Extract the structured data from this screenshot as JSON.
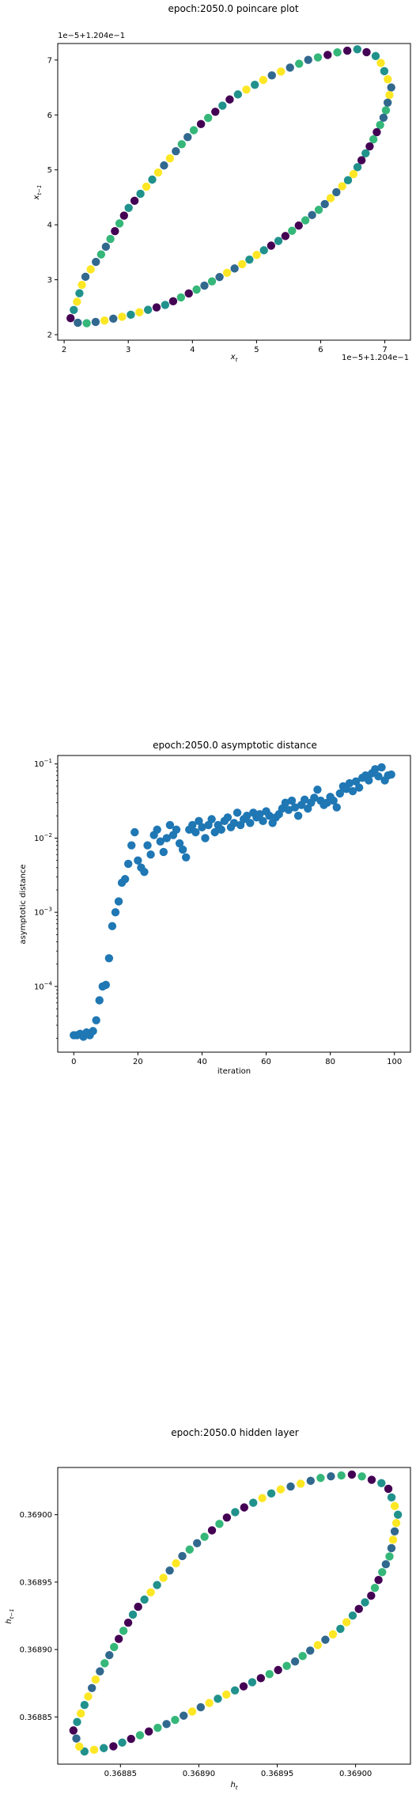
{
  "chart_data": [
    {
      "type": "scatter",
      "title": "epoch:2050.0 poincare plot",
      "xlabel": "x_t",
      "ylabel": "x_{t-1}",
      "xlabel_main": "x",
      "xlabel_sub": "t",
      "ylabel_main": "x",
      "ylabel_sub": "t−1",
      "x_offset_text": "1e−5+1.204e−1",
      "y_offset_text": "1e−5+1.204e−1",
      "xlim": [
        1.9,
        7.4
      ],
      "ylim": [
        1.9,
        7.3
      ],
      "xticks": [
        2,
        3,
        4,
        5,
        6,
        7
      ],
      "yticks": [
        2,
        3,
        4,
        5,
        6,
        7
      ],
      "xtick_labels": [
        "2",
        "3",
        "4",
        "5",
        "6",
        "7"
      ],
      "ytick_labels": [
        "2",
        "3",
        "4",
        "5",
        "6",
        "7"
      ],
      "colormap": [
        "#440154",
        "#31688e",
        "#21918c",
        "#35b779",
        "#fde725"
      ],
      "orbit": {
        "upper": [
          [
            2.1,
            2.3
          ],
          [
            2.2,
            2.6
          ],
          [
            2.3,
            3.0
          ],
          [
            2.6,
            3.5
          ],
          [
            3.0,
            4.3
          ],
          [
            3.5,
            5.0
          ],
          [
            4.0,
            5.7
          ],
          [
            4.6,
            6.3
          ],
          [
            5.2,
            6.7
          ],
          [
            5.8,
            7.0
          ],
          [
            6.3,
            7.15
          ],
          [
            6.6,
            7.2
          ],
          [
            6.9,
            7.05
          ],
          [
            7.1,
            6.5
          ]
        ],
        "lower": [
          [
            7.1,
            6.5
          ],
          [
            7.0,
            6.0
          ],
          [
            6.8,
            5.5
          ],
          [
            6.5,
            4.9
          ],
          [
            6.0,
            4.3
          ],
          [
            5.4,
            3.75
          ],
          [
            4.8,
            3.3
          ],
          [
            4.2,
            2.9
          ],
          [
            3.6,
            2.55
          ],
          [
            3.0,
            2.35
          ],
          [
            2.6,
            2.25
          ],
          [
            2.3,
            2.2
          ],
          [
            2.2,
            2.22
          ],
          [
            2.1,
            2.3
          ]
        ],
        "upper_count": 50,
        "lower_count": 50
      }
    },
    {
      "type": "scatter",
      "title": "epoch:2050.0 asymptotic distance",
      "xlabel": "iteration",
      "ylabel": "asymptotic distance",
      "xscale": "linear",
      "yscale": "log",
      "xlim": [
        -5,
        105
      ],
      "ylim": [
        1.3e-05,
        0.13
      ],
      "xticks": [
        0,
        20,
        40,
        60,
        80,
        100
      ],
      "xtick_labels": [
        "0",
        "20",
        "40",
        "60",
        "80",
        "100"
      ],
      "ytick_mantissa": "10",
      "yticks": [
        {
          "value": 0.0001,
          "exp": "−4"
        },
        {
          "value": 0.001,
          "exp": "−3"
        },
        {
          "value": 0.01,
          "exp": "−2"
        },
        {
          "value": 0.1,
          "exp": "−1"
        }
      ],
      "color": "#1f77b4",
      "points": [
        [
          0,
          2.2e-05
        ],
        [
          1,
          2.2e-05
        ],
        [
          2,
          2.3e-05
        ],
        [
          3,
          2.1e-05
        ],
        [
          4,
          2.4e-05
        ],
        [
          5,
          2.2e-05
        ],
        [
          6,
          2.5e-05
        ],
        [
          7,
          3.5e-05
        ],
        [
          8,
          6.5e-05
        ],
        [
          9,
          0.0001
        ],
        [
          10,
          0.000105
        ],
        [
          11,
          0.00024
        ],
        [
          12,
          0.00065
        ],
        [
          13,
          0.001
        ],
        [
          14,
          0.0014
        ],
        [
          15,
          0.0025
        ],
        [
          16,
          0.0028
        ],
        [
          17,
          0.0045
        ],
        [
          18,
          0.008
        ],
        [
          19,
          0.012
        ],
        [
          20,
          0.005
        ],
        [
          21,
          0.004
        ],
        [
          22,
          0.0035
        ],
        [
          23,
          0.008
        ],
        [
          24,
          0.006
        ],
        [
          25,
          0.011
        ],
        [
          26,
          0.013
        ],
        [
          27,
          0.009
        ],
        [
          28,
          0.0065
        ],
        [
          29,
          0.01
        ],
        [
          30,
          0.015
        ],
        [
          31,
          0.011
        ],
        [
          32,
          0.013
        ],
        [
          33,
          0.0085
        ],
        [
          34,
          0.007
        ],
        [
          35,
          0.0055
        ],
        [
          36,
          0.013
        ],
        [
          37,
          0.015
        ],
        [
          38,
          0.012
        ],
        [
          39,
          0.017
        ],
        [
          40,
          0.014
        ],
        [
          41,
          0.01
        ],
        [
          42,
          0.015
        ],
        [
          43,
          0.018
        ],
        [
          44,
          0.012
        ],
        [
          45,
          0.015
        ],
        [
          46,
          0.013
        ],
        [
          47,
          0.017
        ],
        [
          48,
          0.019
        ],
        [
          49,
          0.014
        ],
        [
          50,
          0.016
        ],
        [
          51,
          0.022
        ],
        [
          52,
          0.015
        ],
        [
          53,
          0.018
        ],
        [
          54,
          0.02
        ],
        [
          55,
          0.016
        ],
        [
          56,
          0.022
        ],
        [
          57,
          0.019
        ],
        [
          58,
          0.021
        ],
        [
          59,
          0.017
        ],
        [
          60,
          0.023
        ],
        [
          61,
          0.02
        ],
        [
          62,
          0.016
        ],
        [
          63,
          0.019
        ],
        [
          64,
          0.021
        ],
        [
          65,
          0.025
        ],
        [
          66,
          0.03
        ],
        [
          67,
          0.024
        ],
        [
          68,
          0.032
        ],
        [
          69,
          0.026
        ],
        [
          70,
          0.02
        ],
        [
          71,
          0.028
        ],
        [
          72,
          0.033
        ],
        [
          73,
          0.025
        ],
        [
          74,
          0.03
        ],
        [
          75,
          0.035
        ],
        [
          76,
          0.045
        ],
        [
          77,
          0.032
        ],
        [
          78,
          0.028
        ],
        [
          79,
          0.03
        ],
        [
          80,
          0.036
        ],
        [
          81,
          0.032
        ],
        [
          82,
          0.026
        ],
        [
          83,
          0.04
        ],
        [
          84,
          0.05
        ],
        [
          85,
          0.046
        ],
        [
          86,
          0.055
        ],
        [
          87,
          0.043
        ],
        [
          88,
          0.058
        ],
        [
          89,
          0.048
        ],
        [
          90,
          0.065
        ],
        [
          91,
          0.07
        ],
        [
          92,
          0.06
        ],
        [
          93,
          0.075
        ],
        [
          94,
          0.085
        ],
        [
          95,
          0.068
        ],
        [
          96,
          0.09
        ],
        [
          97,
          0.06
        ],
        [
          98,
          0.07
        ],
        [
          99,
          0.072
        ]
      ]
    },
    {
      "type": "scatter",
      "title": "epoch:2050.0 hidden layer",
      "xlabel": "h_t",
      "ylabel": "h_{t-1}",
      "xlabel_main": "h",
      "xlabel_sub": "t",
      "ylabel_main": "h",
      "ylabel_sub": "t−1",
      "xlim": [
        0.36881,
        0.369035
      ],
      "ylim": [
        0.368815,
        0.369035
      ],
      "xticks": [
        0.36885,
        0.3689,
        0.36895,
        0.369
      ],
      "yticks": [
        0.36885,
        0.3689,
        0.36895,
        0.369
      ],
      "xtick_labels": [
        "0.36885",
        "0.36890",
        "0.36895",
        "0.36900"
      ],
      "ytick_labels": [
        "0.36885",
        "0.36890",
        "0.36895",
        "0.36900"
      ],
      "colormap": [
        "#440154",
        "#31688e",
        "#21918c",
        "#35b779",
        "#fde725"
      ],
      "orbit": {
        "upper": [
          [
            0.36882,
            0.36884
          ],
          [
            0.368835,
            0.36888
          ],
          [
            0.36886,
            0.36893
          ],
          [
            0.36889,
            0.36897
          ],
          [
            0.36892,
            0.369
          ],
          [
            0.36895,
            0.369018
          ],
          [
            0.36898,
            0.369028
          ],
          [
            0.369,
            0.36903
          ],
          [
            0.36902,
            0.369022
          ],
          [
            0.369027,
            0.369
          ]
        ],
        "lower": [
          [
            0.369027,
            0.369
          ],
          [
            0.369022,
            0.36897
          ],
          [
            0.36901,
            0.36894
          ],
          [
            0.36899,
            0.368915
          ],
          [
            0.36896,
            0.36889
          ],
          [
            0.36892,
            0.368868
          ],
          [
            0.36888,
            0.368845
          ],
          [
            0.368845,
            0.368828
          ],
          [
            0.368825,
            0.368824
          ],
          [
            0.36882,
            0.36884
          ]
        ],
        "upper_count": 48,
        "lower_count": 48
      }
    }
  ]
}
